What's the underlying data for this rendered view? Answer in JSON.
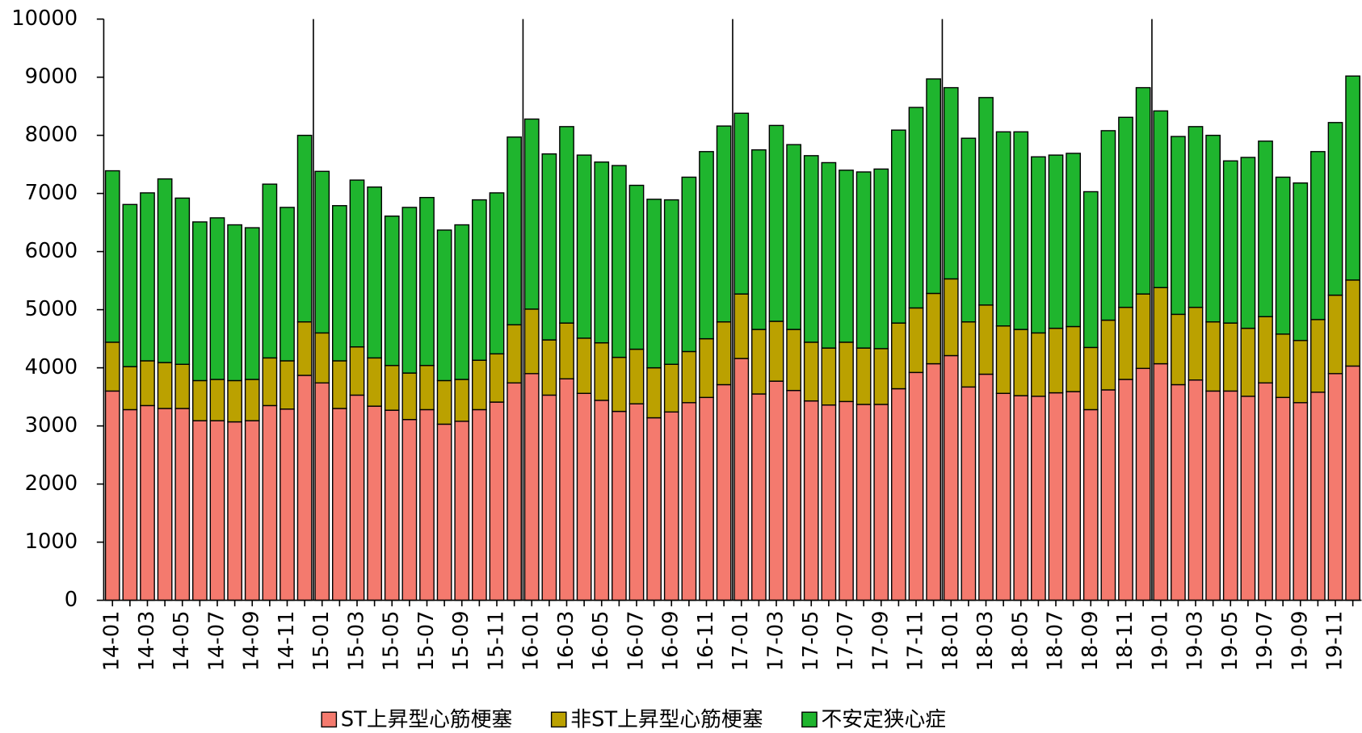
{
  "chart_data": {
    "type": "stacked_bar",
    "categories": [
      "14-01",
      null,
      "14-03",
      null,
      "14-05",
      null,
      "14-07",
      null,
      "14-09",
      null,
      "14-11",
      null,
      "15-01",
      null,
      "15-03",
      null,
      "15-05",
      null,
      "15-07",
      null,
      "15-09",
      null,
      "15-11",
      null,
      "16-01",
      null,
      "16-03",
      null,
      "16-05",
      null,
      "16-07",
      null,
      "16-09",
      null,
      "16-11",
      null,
      "17-01",
      null,
      "17-03",
      null,
      "17-05",
      null,
      "17-07",
      null,
      "17-09",
      null,
      "17-11",
      null,
      "18-01",
      null,
      "18-03",
      null,
      "18-05",
      null,
      "18-07",
      null,
      "18-09",
      null,
      "18-11",
      null,
      "19-01",
      null,
      "19-03",
      null,
      "19-05",
      null,
      "19-07",
      null,
      "19-09",
      null,
      "19-11",
      null
    ],
    "series": [
      {
        "name": "ST上昇型心筋梗塞",
        "color": "#f47a6e",
        "values": [
          3600,
          3280,
          3350,
          3300,
          3300,
          3090,
          3090,
          3070,
          3090,
          3350,
          3290,
          3870,
          3740,
          3300,
          3530,
          3340,
          3270,
          3110,
          3280,
          3030,
          3080,
          3280,
          3410,
          3740,
          3900,
          3530,
          3810,
          3560,
          3440,
          3250,
          3380,
          3140,
          3240,
          3400,
          3490,
          3710,
          4160,
          3550,
          3770,
          3610,
          3430,
          3360,
          3420,
          3370,
          3370,
          3640,
          3920,
          4070,
          4210,
          3670,
          3890,
          3560,
          3520,
          3510,
          3570,
          3590,
          3280,
          3620,
          3800,
          3990,
          4070,
          3710,
          3790,
          3600,
          3600,
          3510,
          3740,
          3490,
          3400,
          3580,
          3900,
          4030
        ]
      },
      {
        "name": "非ST上昇型心筋梗塞",
        "color": "#bba100",
        "values": [
          840,
          740,
          770,
          790,
          760,
          690,
          710,
          710,
          710,
          820,
          830,
          920,
          860,
          820,
          830,
          830,
          770,
          800,
          760,
          750,
          720,
          850,
          830,
          1000,
          1110,
          950,
          960,
          950,
          990,
          930,
          940,
          860,
          820,
          880,
          1010,
          1080,
          1110,
          1110,
          1030,
          1050,
          1010,
          980,
          1020,
          970,
          960,
          1130,
          1110,
          1210,
          1320,
          1120,
          1190,
          1160,
          1140,
          1090,
          1110,
          1120,
          1070,
          1200,
          1240,
          1280,
          1310,
          1210,
          1250,
          1190,
          1170,
          1170,
          1140,
          1090,
          1070,
          1250,
          1350,
          1480
        ]
      },
      {
        "name": "不安定狭心症",
        "color": "#1fb52e",
        "values": [
          2950,
          2790,
          2890,
          3160,
          2860,
          2730,
          2780,
          2680,
          2610,
          2990,
          2640,
          3210,
          2780,
          2670,
          2870,
          2940,
          2570,
          2850,
          2890,
          2590,
          2660,
          2760,
          2770,
          3230,
          3270,
          3200,
          3380,
          3150,
          3110,
          3300,
          2820,
          2900,
          2830,
          3000,
          3220,
          3370,
          3110,
          3090,
          3370,
          3180,
          3210,
          3190,
          2960,
          3030,
          3090,
          3320,
          3450,
          3690,
          3290,
          3160,
          3570,
          3340,
          3400,
          3030,
          2980,
          2980,
          2680,
          3260,
          3270,
          3550,
          3040,
          3060,
          3110,
          3210,
          2790,
          2940,
          3020,
          2700,
          2710,
          2890,
          2970,
          3510
        ]
      }
    ],
    "ylim": [
      0,
      10000
    ],
    "yticks": [
      0,
      1000,
      2000,
      3000,
      4000,
      5000,
      6000,
      7000,
      8000,
      9000,
      10000
    ]
  }
}
